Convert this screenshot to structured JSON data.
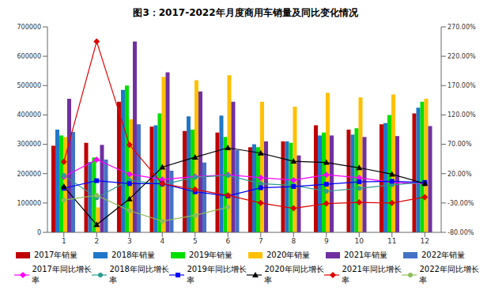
{
  "chart_data": {
    "type": "bar",
    "title": "图3：2017-2022年月度商用车销量及同比变化情况",
    "categories": [
      "1",
      "2",
      "3",
      "4",
      "5",
      "6",
      "7",
      "8",
      "9",
      "10",
      "11",
      "12"
    ],
    "ylim": [
      0,
      700000
    ],
    "yticks": [
      0,
      100000,
      200000,
      300000,
      400000,
      500000,
      600000,
      700000
    ],
    "y2lim": [
      -80,
      270
    ],
    "y2ticks": [
      {
        "value": -80,
        "label": "-80.00%"
      },
      {
        "value": -30,
        "label": "-30.00%"
      },
      {
        "value": 20,
        "label": "20.00%"
      },
      {
        "value": 70,
        "label": "70.00%"
      },
      {
        "value": 120,
        "label": "120.00%"
      },
      {
        "value": 170,
        "label": "170.00%"
      },
      {
        "value": 220,
        "label": "220.00%"
      },
      {
        "value": 270,
        "label": "270.00%"
      }
    ],
    "grid": false,
    "legend": "bottom",
    "series": [
      {
        "name": "2017年销量",
        "type": "bar",
        "color": "#c00000",
        "values": [
          295000,
          305000,
          445000,
          360000,
          345000,
          340000,
          290000,
          310000,
          365000,
          350000,
          368000,
          405000
        ]
      },
      {
        "name": "2018年销量",
        "type": "bar",
        "color": "#1f77c8",
        "values": [
          350000,
          240000,
          485000,
          365000,
          395000,
          398000,
          300000,
          310000,
          330000,
          333000,
          372000,
          425000
        ]
      },
      {
        "name": "2019年销量",
        "type": "bar",
        "color": "#00e000",
        "values": [
          330000,
          255000,
          500000,
          405000,
          350000,
          325000,
          290000,
          305000,
          340000,
          355000,
          400000,
          445000
        ]
      },
      {
        "name": "2020年销量",
        "type": "bar",
        "color": "#ffc000",
        "values": [
          325000,
          85000,
          385000,
          530000,
          518000,
          535000,
          445000,
          428000,
          475000,
          460000,
          470000,
          455000
        ]
      },
      {
        "name": "2021年销量",
        "type": "bar",
        "color": "#7030a0",
        "values": [
          455000,
          298000,
          650000,
          545000,
          480000,
          445000,
          310000,
          262000,
          330000,
          325000,
          328000,
          362000
        ]
      },
      {
        "name": "2022年销量",
        "type": "bar",
        "color": "#4472c4",
        "values": [
          342000,
          248000,
          368000,
          210000,
          238000,
          280000,
          null,
          null,
          null,
          null,
          null,
          null
        ]
      },
      {
        "name": "2017年同比增长率",
        "type": "line",
        "axis": "y2",
        "color": "#ff00ff",
        "marker": "diamond",
        "values": [
          15,
          44,
          19,
          10,
          15,
          18,
          13,
          9,
          18,
          13,
          5,
          3
        ]
      },
      {
        "name": "2018年同比增长率",
        "type": "line",
        "axis": "y2",
        "color": "#2e9b8f",
        "marker": "circle",
        "values": [
          17,
          -21,
          9,
          1,
          14,
          17,
          3,
          0,
          -10,
          -5,
          1,
          5
        ]
      },
      {
        "name": "2019年同比增长率",
        "type": "line",
        "axis": "y2",
        "color": "#0000ff",
        "marker": "square",
        "values": [
          -5,
          8,
          3,
          3,
          -11,
          -18,
          -4,
          -2,
          2,
          6,
          7,
          5
        ]
      },
      {
        "name": "2020年同比增长率",
        "type": "line",
        "axis": "y2",
        "color": "#000000",
        "marker": "triangle",
        "values": [
          -2,
          -67,
          -23,
          31,
          48,
          64,
          55,
          41,
          39,
          30,
          19,
          3
        ]
      },
      {
        "name": "2021年同比增长率",
        "type": "line",
        "axis": "y2",
        "color": "#e00000",
        "marker": "diamond",
        "values": [
          40,
          245,
          69,
          3,
          -7,
          -17,
          -30,
          -39,
          -31,
          -29,
          -30,
          -20
        ]
      },
      {
        "name": "2022年同比增长率",
        "type": "line",
        "axis": "y2",
        "color": "#8fbc5a",
        "marker": "circle",
        "values": [
          -25,
          -17,
          -43,
          -61,
          -51,
          -37,
          null,
          null,
          null,
          null,
          null,
          null
        ]
      }
    ]
  }
}
